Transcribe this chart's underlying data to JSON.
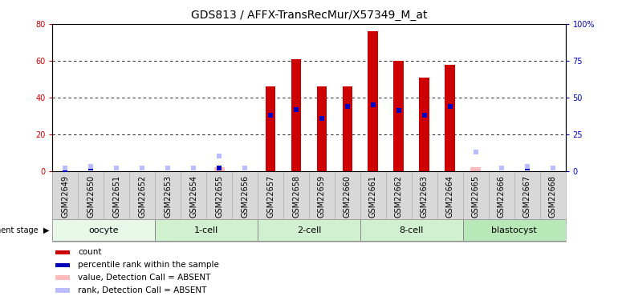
{
  "title": "GDS813 / AFFX-TransRecMur/X57349_M_at",
  "samples": [
    "GSM22649",
    "GSM22650",
    "GSM22651",
    "GSM22652",
    "GSM22653",
    "GSM22654",
    "GSM22655",
    "GSM22656",
    "GSM22657",
    "GSM22658",
    "GSM22659",
    "GSM22660",
    "GSM22661",
    "GSM22662",
    "GSM22663",
    "GSM22664",
    "GSM22665",
    "GSM22666",
    "GSM22667",
    "GSM22668"
  ],
  "red_bars": [
    0,
    0,
    0,
    0,
    0,
    0,
    0,
    0,
    46,
    61,
    46,
    46,
    76,
    60,
    51,
    58,
    0,
    0,
    0,
    0
  ],
  "blue_squares_pct": [
    1,
    2,
    2,
    2,
    2,
    2,
    2,
    2,
    38,
    42,
    36,
    44,
    45,
    41,
    38,
    44,
    0,
    2,
    2,
    2
  ],
  "pink_bars": [
    0,
    0,
    0,
    0,
    0,
    0,
    2,
    0,
    0,
    0,
    0,
    0,
    0,
    0,
    0,
    0,
    2,
    0,
    0,
    0
  ],
  "lightblue_squares_pct": [
    2,
    3,
    2,
    2,
    2,
    2,
    10,
    2,
    0,
    0,
    0,
    0,
    0,
    0,
    0,
    0,
    13,
    2,
    3,
    2
  ],
  "groups": [
    {
      "label": "oocyte",
      "start": 0,
      "end": 4
    },
    {
      "label": "1-cell",
      "start": 4,
      "end": 8
    },
    {
      "label": "2-cell",
      "start": 8,
      "end": 12
    },
    {
      "label": "8-cell",
      "start": 12,
      "end": 16
    },
    {
      "label": "blastocyst",
      "start": 16,
      "end": 20
    }
  ],
  "group_bg_colors": [
    "#e8f8e8",
    "#d0f0d0",
    "#d0f0d0",
    "#d0f0d0",
    "#b8e8b8"
  ],
  "ylim_left": [
    0,
    80
  ],
  "ylim_right": [
    0,
    100
  ],
  "yticks_left": [
    0,
    20,
    40,
    60,
    80
  ],
  "yticks_right": [
    0,
    25,
    50,
    75,
    100
  ],
  "red_color": "#cc0000",
  "blue_color": "#0000bb",
  "pink_color": "#ffbbbb",
  "lightblue_color": "#bbbbff",
  "sample_bg": "#d8d8d8",
  "title_fontsize": 10,
  "tick_fontsize": 7,
  "group_fontsize": 8,
  "legend_fontsize": 7.5
}
